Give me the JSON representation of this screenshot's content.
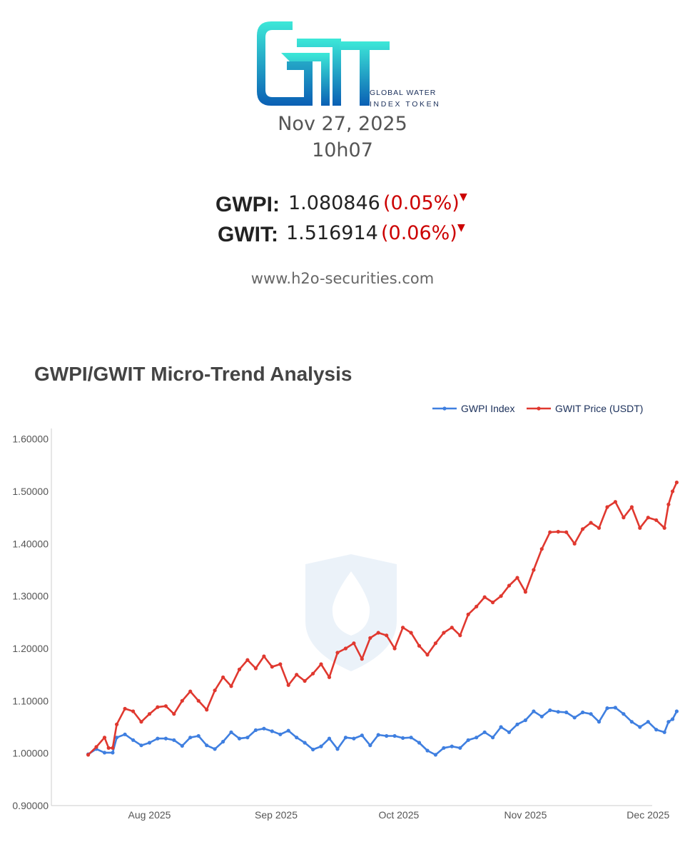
{
  "header": {
    "logo_line1": "GLOBAL WATER",
    "logo_line2": "INDEX TOKEN",
    "date": "Nov 27, 2025",
    "time": "10h07"
  },
  "quotes": [
    {
      "label": "GWPI:",
      "value": "1.080846",
      "change": "(0.05%)",
      "arrow": "▼"
    },
    {
      "label": "GWIT:",
      "value": "1.516914",
      "change": "(0.06%)",
      "arrow": "▼"
    }
  ],
  "website": "www.h2o-securities.com",
  "colors": {
    "gwpi": "#3f7fe0",
    "gwit": "#e0382f",
    "down": "#cc0000"
  },
  "chart_data": {
    "type": "line",
    "title": "GWPI/GWIT Micro-Trend Analysis",
    "xlabel": "",
    "ylabel": "",
    "x_ticks": [
      {
        "label": "Aug 2025",
        "date": "2025-08-01"
      },
      {
        "label": "Sep 2025",
        "date": "2025-09-01"
      },
      {
        "label": "Oct 2025",
        "date": "2025-10-01"
      },
      {
        "label": "Nov 2025",
        "date": "2025-11-01"
      },
      {
        "label": "Dec 2025",
        "date": "2025-12-01"
      }
    ],
    "y_ticks": [
      "0.90000",
      "1.00000",
      "1.10000",
      "1.20000",
      "1.30000",
      "1.40000",
      "1.50000",
      "1.60000"
    ],
    "ylim": [
      0.9,
      1.62
    ],
    "xlim": [
      "2025-07-08",
      "2025-12-02"
    ],
    "grid": false,
    "legend_position": "top-right",
    "series": [
      {
        "name": "GWPI Index",
        "color": "#3f7fe0",
        "points": [
          [
            "2025-07-17",
            0.998
          ],
          [
            "2025-07-19",
            1.008
          ],
          [
            "2025-07-21",
            1.001
          ],
          [
            "2025-07-23",
            1.001
          ],
          [
            "2025-07-24",
            1.03
          ],
          [
            "2025-07-26",
            1.036
          ],
          [
            "2025-07-28",
            1.025
          ],
          [
            "2025-07-30",
            1.015
          ],
          [
            "2025-08-01",
            1.02
          ],
          [
            "2025-08-03",
            1.028
          ],
          [
            "2025-08-05",
            1.028
          ],
          [
            "2025-08-07",
            1.025
          ],
          [
            "2025-08-09",
            1.014
          ],
          [
            "2025-08-11",
            1.03
          ],
          [
            "2025-08-13",
            1.033
          ],
          [
            "2025-08-15",
            1.015
          ],
          [
            "2025-08-17",
            1.008
          ],
          [
            "2025-08-19",
            1.022
          ],
          [
            "2025-08-21",
            1.04
          ],
          [
            "2025-08-23",
            1.028
          ],
          [
            "2025-08-25",
            1.03
          ],
          [
            "2025-08-27",
            1.044
          ],
          [
            "2025-08-29",
            1.047
          ],
          [
            "2025-08-31",
            1.042
          ],
          [
            "2025-09-02",
            1.036
          ],
          [
            "2025-09-04",
            1.043
          ],
          [
            "2025-09-06",
            1.03
          ],
          [
            "2025-09-08",
            1.02
          ],
          [
            "2025-09-10",
            1.007
          ],
          [
            "2025-09-12",
            1.013
          ],
          [
            "2025-09-14",
            1.028
          ],
          [
            "2025-09-16",
            1.008
          ],
          [
            "2025-09-18",
            1.03
          ],
          [
            "2025-09-20",
            1.028
          ],
          [
            "2025-09-22",
            1.034
          ],
          [
            "2025-09-24",
            1.015
          ],
          [
            "2025-09-26",
            1.035
          ],
          [
            "2025-09-28",
            1.033
          ],
          [
            "2025-09-30",
            1.033
          ],
          [
            "2025-10-02",
            1.029
          ],
          [
            "2025-10-04",
            1.03
          ],
          [
            "2025-10-06",
            1.02
          ],
          [
            "2025-10-08",
            1.005
          ],
          [
            "2025-10-10",
            0.997
          ],
          [
            "2025-10-12",
            1.01
          ],
          [
            "2025-10-14",
            1.013
          ],
          [
            "2025-10-16",
            1.01
          ],
          [
            "2025-10-18",
            1.025
          ],
          [
            "2025-10-20",
            1.03
          ],
          [
            "2025-10-22",
            1.04
          ],
          [
            "2025-10-24",
            1.03
          ],
          [
            "2025-10-26",
            1.05
          ],
          [
            "2025-10-28",
            1.04
          ],
          [
            "2025-10-30",
            1.055
          ],
          [
            "2025-11-01",
            1.063
          ],
          [
            "2025-11-03",
            1.08
          ],
          [
            "2025-11-05",
            1.07
          ],
          [
            "2025-11-07",
            1.082
          ],
          [
            "2025-11-09",
            1.079
          ],
          [
            "2025-11-11",
            1.078
          ],
          [
            "2025-11-13",
            1.068
          ],
          [
            "2025-11-15",
            1.078
          ],
          [
            "2025-11-17",
            1.075
          ],
          [
            "2025-11-19",
            1.06
          ],
          [
            "2025-11-21",
            1.086
          ],
          [
            "2025-11-23",
            1.087
          ],
          [
            "2025-11-25",
            1.075
          ],
          [
            "2025-11-27",
            1.06
          ],
          [
            "2025-11-29",
            1.05
          ],
          [
            "2025-12-01",
            1.06
          ],
          [
            "2025-12-03",
            1.045
          ],
          [
            "2025-12-05",
            1.04
          ],
          [
            "2025-12-06",
            1.06
          ],
          [
            "2025-12-07",
            1.065
          ],
          [
            "2025-12-08",
            1.08
          ]
        ]
      },
      {
        "name": "GWIT Price (USDT)",
        "color": "#e0382f",
        "points": [
          [
            "2025-07-17",
            0.997
          ],
          [
            "2025-07-19",
            1.012
          ],
          [
            "2025-07-21",
            1.03
          ],
          [
            "2025-07-22",
            1.01
          ],
          [
            "2025-07-23",
            1.01
          ],
          [
            "2025-07-24",
            1.055
          ],
          [
            "2025-07-26",
            1.085
          ],
          [
            "2025-07-28",
            1.08
          ],
          [
            "2025-07-30",
            1.06
          ],
          [
            "2025-08-01",
            1.075
          ],
          [
            "2025-08-03",
            1.088
          ],
          [
            "2025-08-05",
            1.09
          ],
          [
            "2025-08-07",
            1.075
          ],
          [
            "2025-08-09",
            1.1
          ],
          [
            "2025-08-11",
            1.118
          ],
          [
            "2025-08-13",
            1.1
          ],
          [
            "2025-08-15",
            1.083
          ],
          [
            "2025-08-17",
            1.12
          ],
          [
            "2025-08-19",
            1.145
          ],
          [
            "2025-08-21",
            1.128
          ],
          [
            "2025-08-23",
            1.16
          ],
          [
            "2025-08-25",
            1.178
          ],
          [
            "2025-08-27",
            1.162
          ],
          [
            "2025-08-29",
            1.185
          ],
          [
            "2025-08-31",
            1.165
          ],
          [
            "2025-09-02",
            1.17
          ],
          [
            "2025-09-04",
            1.13
          ],
          [
            "2025-09-06",
            1.15
          ],
          [
            "2025-09-08",
            1.138
          ],
          [
            "2025-09-10",
            1.152
          ],
          [
            "2025-09-12",
            1.17
          ],
          [
            "2025-09-14",
            1.145
          ],
          [
            "2025-09-16",
            1.192
          ],
          [
            "2025-09-18",
            1.2
          ],
          [
            "2025-09-20",
            1.21
          ],
          [
            "2025-09-22",
            1.18
          ],
          [
            "2025-09-24",
            1.22
          ],
          [
            "2025-09-26",
            1.23
          ],
          [
            "2025-09-28",
            1.225
          ],
          [
            "2025-09-30",
            1.2
          ],
          [
            "2025-10-02",
            1.24
          ],
          [
            "2025-10-04",
            1.23
          ],
          [
            "2025-10-06",
            1.205
          ],
          [
            "2025-10-08",
            1.188
          ],
          [
            "2025-10-10",
            1.21
          ],
          [
            "2025-10-12",
            1.23
          ],
          [
            "2025-10-14",
            1.24
          ],
          [
            "2025-10-16",
            1.225
          ],
          [
            "2025-10-18",
            1.265
          ],
          [
            "2025-10-20",
            1.28
          ],
          [
            "2025-10-22",
            1.298
          ],
          [
            "2025-10-24",
            1.288
          ],
          [
            "2025-10-26",
            1.3
          ],
          [
            "2025-10-28",
            1.32
          ],
          [
            "2025-10-30",
            1.335
          ],
          [
            "2025-11-01",
            1.308
          ],
          [
            "2025-11-03",
            1.35
          ],
          [
            "2025-11-05",
            1.39
          ],
          [
            "2025-11-07",
            1.422
          ],
          [
            "2025-11-09",
            1.423
          ],
          [
            "2025-11-11",
            1.422
          ],
          [
            "2025-11-13",
            1.4
          ],
          [
            "2025-11-15",
            1.428
          ],
          [
            "2025-11-17",
            1.44
          ],
          [
            "2025-11-19",
            1.43
          ],
          [
            "2025-11-21",
            1.47
          ],
          [
            "2025-11-23",
            1.48
          ],
          [
            "2025-11-25",
            1.45
          ],
          [
            "2025-11-27",
            1.47
          ],
          [
            "2025-11-29",
            1.43
          ],
          [
            "2025-12-01",
            1.45
          ],
          [
            "2025-12-03",
            1.445
          ],
          [
            "2025-12-05",
            1.43
          ],
          [
            "2025-12-06",
            1.475
          ],
          [
            "2025-12-07",
            1.5
          ],
          [
            "2025-12-08",
            1.517
          ]
        ]
      }
    ]
  }
}
